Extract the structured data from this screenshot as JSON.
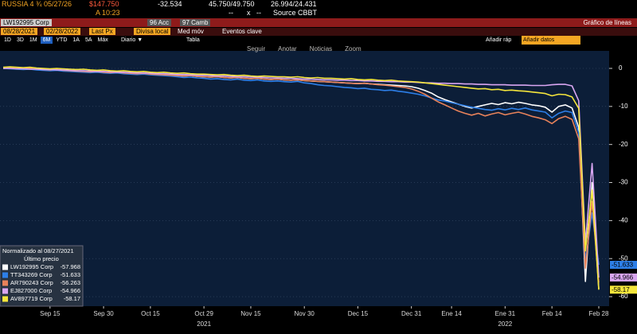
{
  "header": {
    "security": "RUSSIA 4 ¾ 05/27/26",
    "price": "$147.750",
    "change": "-32.534",
    "bid_ask": "45.750/49.750",
    "range": "26.994/24.431",
    "time": "A 10:23",
    "field_1": "--",
    "field_2": "x",
    "field_3": "--",
    "source": "Source CBBT"
  },
  "toolbar": {
    "ticker": "LW192995 Corp",
    "menu_1": "96 Acc",
    "menu_2": "97 Camb",
    "view": "Gráfico de líneas",
    "start_date": "08/28/2021",
    "end_date": "02/28/2022",
    "field": "Last Px",
    "currency": "Divisa local",
    "moving_avg": "Med móv",
    "events": "Eventos clave",
    "periods": [
      "1D",
      "3D",
      "1M",
      "6M",
      "YTD",
      "1A",
      "5A",
      "Máx"
    ],
    "frequency": "Diario ▼",
    "table": "Tabla",
    "quick_add": "Añadir ráp",
    "add_data": "Añadir datos",
    "tools": [
      "Seguir",
      "Anotar",
      "Noticias",
      "Zoom"
    ]
  },
  "chart_data": {
    "type": "line",
    "legend_title": "Normalizado al 08/27/2021",
    "legend_subtitle": "Último precio",
    "legend": "bottom-left",
    "grid": true,
    "categories": [
      null,
      null,
      null,
      null,
      null,
      null,
      null,
      "Sep 15",
      null,
      null,
      null,
      null,
      null,
      null,
      null,
      "Sep 30",
      null,
      null,
      null,
      null,
      null,
      null,
      "Oct 15",
      null,
      null,
      null,
      null,
      null,
      null,
      null,
      "Oct 29",
      null,
      null,
      null,
      null,
      null,
      null,
      "Nov 15",
      null,
      null,
      null,
      null,
      null,
      null,
      null,
      "Nov 30",
      null,
      null,
      null,
      null,
      null,
      null,
      null,
      "Dec 15",
      null,
      null,
      null,
      null,
      null,
      null,
      null,
      "Dec 31",
      null,
      null,
      null,
      null,
      null,
      "Ene 14",
      null,
      null,
      null,
      null,
      null,
      null,
      null,
      "Ene 31",
      null,
      null,
      null,
      null,
      null,
      null,
      "Feb 14",
      null,
      null,
      null,
      null,
      null,
      null,
      "Feb 28"
    ],
    "year_labels": [
      "2021",
      "2022"
    ],
    "ylim": [
      -62.5,
      4.6
    ],
    "yticks": [
      0,
      -10,
      -20,
      -30,
      -40,
      -50,
      -60
    ],
    "series": [
      {
        "name": "LW192995 Corp",
        "color": "#ffffff",
        "end_label": false,
        "values": [
          0,
          0,
          -0.1,
          -0.2,
          -0.1,
          -0.2,
          -0.3,
          -0.4,
          -0.3,
          -0.5,
          -0.6,
          -0.7,
          -0.8,
          -0.7,
          -0.9,
          -1.0,
          -1.1,
          -1.0,
          -1.2,
          -1.3,
          -1.4,
          -1.3,
          -1.5,
          -1.6,
          -1.7,
          -1.8,
          -1.9,
          -2.0,
          -1.9,
          -2.1,
          -2.2,
          -2.3,
          -2.2,
          -2.4,
          -2.5,
          -2.4,
          -2.6,
          -2.7,
          -2.6,
          -2.8,
          -2.9,
          -2.8,
          -3.0,
          -3.1,
          -3.0,
          -3.2,
          -3.3,
          -3.4,
          -3.5,
          -3.6,
          -3.7,
          -3.8,
          -3.9,
          -4.0,
          -3.9,
          -4.1,
          -4.2,
          -4.3,
          -4.4,
          -4.5,
          -4.6,
          -4.8,
          -5.2,
          -5.8,
          -6.5,
          -7.5,
          -8.2,
          -8.8,
          -9.4,
          -10.0,
          -10.4,
          -10.0,
          -9.6,
          -9.2,
          -9.5,
          -9.0,
          -9.3,
          -8.9,
          -9.2,
          -9.6,
          -9.8,
          -10.2,
          -11.5,
          -10.0,
          -9.6,
          -10.4,
          -15.5,
          -56.0,
          -30.0,
          -57.968
        ]
      },
      {
        "name": "TT343269 Corp",
        "color": "#2d7fe8",
        "end_label": true,
        "values": [
          0,
          -0.1,
          -0.2,
          -0.3,
          -0.2,
          -0.4,
          -0.5,
          -0.6,
          -0.5,
          -0.7,
          -0.8,
          -0.9,
          -1.0,
          -1.1,
          -1.0,
          -1.2,
          -1.3,
          -1.2,
          -1.4,
          -1.5,
          -1.6,
          -1.5,
          -1.7,
          -1.8,
          -1.9,
          -2.0,
          -2.2,
          -2.4,
          -2.3,
          -2.5,
          -2.6,
          -2.8,
          -2.7,
          -2.9,
          -3.0,
          -2.8,
          -3.1,
          -3.2,
          -3.0,
          -3.3,
          -3.4,
          -3.3,
          -3.5,
          -3.6,
          -3.4,
          -3.8,
          -4.0,
          -4.3,
          -4.5,
          -4.6,
          -4.8,
          -5.0,
          -5.1,
          -5.3,
          -5.2,
          -5.5,
          -5.6,
          -5.8,
          -5.7,
          -6.0,
          -6.2,
          -6.5,
          -6.8,
          -7.2,
          -7.8,
          -8.3,
          -8.6,
          -9.0,
          -9.4,
          -9.8,
          -10.2,
          -10.5,
          -10.8,
          -11.0,
          -10.6,
          -10.9,
          -10.5,
          -10.8,
          -10.4,
          -10.9,
          -11.2,
          -11.5,
          -13.0,
          -11.8,
          -11.2,
          -11.6,
          -17.0,
          -50.5,
          -38.0,
          -51.633
        ]
      },
      {
        "name": "AR790243 Corp",
        "color": "#e8825a",
        "end_label": false,
        "values": [
          0.2,
          0.1,
          0,
          -0.1,
          0,
          -0.2,
          -0.3,
          -0.4,
          -0.3,
          -0.5,
          -0.6,
          -0.7,
          -0.8,
          -0.9,
          -0.8,
          -1.0,
          -1.1,
          -1.0,
          -1.2,
          -1.3,
          -1.4,
          -1.3,
          -1.5,
          -1.6,
          -1.7,
          -1.8,
          -1.9,
          -2.0,
          -1.9,
          -2.1,
          -2.2,
          -2.3,
          -2.2,
          -2.4,
          -2.5,
          -2.4,
          -2.6,
          -2.7,
          -2.6,
          -2.8,
          -2.9,
          -2.8,
          -3.0,
          -3.1,
          -3.0,
          -3.2,
          -3.3,
          -3.4,
          -3.5,
          -3.6,
          -3.7,
          -3.8,
          -3.9,
          -4.0,
          -3.9,
          -4.1,
          -4.3,
          -4.4,
          -4.6,
          -4.8,
          -5.0,
          -5.4,
          -6.0,
          -6.8,
          -7.8,
          -8.8,
          -9.6,
          -10.4,
          -11.2,
          -11.8,
          -12.3,
          -11.8,
          -12.5,
          -12.0,
          -11.6,
          -12.2,
          -11.8,
          -11.5,
          -12.0,
          -12.6,
          -13.0,
          -13.5,
          -14.5,
          -13.2,
          -12.6,
          -13.4,
          -18.5,
          -52.5,
          -35.0,
          -56.263
        ]
      },
      {
        "name": "EJ827000 Corp",
        "color": "#d9a6f2",
        "end_label": true,
        "values": [
          0,
          0,
          -0.1,
          -0.1,
          -0.2,
          -0.2,
          -0.3,
          -0.3,
          -0.4,
          -0.4,
          -0.5,
          -0.6,
          -0.6,
          -0.7,
          -0.8,
          -0.8,
          -0.9,
          -1.0,
          -1.0,
          -1.1,
          -1.2,
          -1.2,
          -1.3,
          -1.4,
          -1.4,
          -1.5,
          -1.6,
          -1.6,
          -1.7,
          -1.8,
          -1.8,
          -1.9,
          -2.0,
          -2.0,
          -2.1,
          -2.2,
          -2.2,
          -2.3,
          -2.3,
          -2.4,
          -2.5,
          -2.5,
          -2.6,
          -2.6,
          -2.7,
          -2.8,
          -2.8,
          -2.9,
          -3.0,
          -3.0,
          -3.1,
          -3.1,
          -3.2,
          -3.2,
          -3.3,
          -3.3,
          -3.4,
          -3.4,
          -3.5,
          -3.5,
          -3.6,
          -3.6,
          -3.7,
          -3.8,
          -3.8,
          -3.9,
          -3.9,
          -4.0,
          -4.0,
          -4.1,
          -4.1,
          -4.2,
          -4.2,
          -4.3,
          -4.3,
          -4.3,
          -4.4,
          -4.4,
          -4.4,
          -4.5,
          -4.5,
          -4.5,
          -4.3,
          -4.2,
          -4.2,
          -4.6,
          -8.5,
          -46.0,
          -25.0,
          -54.966
        ]
      },
      {
        "name": "AV897719 Corp",
        "color": "#f5e63c",
        "end_label": true,
        "values": [
          0.3,
          0.4,
          0.3,
          0.2,
          0.3,
          0.1,
          0,
          -0.1,
          0,
          -0.1,
          -0.2,
          -0.3,
          -0.2,
          -0.4,
          -0.5,
          -0.4,
          -0.6,
          -0.7,
          -0.6,
          -0.8,
          -0.9,
          -0.8,
          -1.0,
          -1.1,
          -1.0,
          -1.2,
          -1.3,
          -1.2,
          -1.4,
          -1.5,
          -1.5,
          -1.6,
          -1.7,
          -1.6,
          -1.8,
          -1.9,
          -1.8,
          -2.0,
          -2.1,
          -2.0,
          -2.1,
          -2.2,
          -2.2,
          -2.3,
          -2.2,
          -2.4,
          -2.5,
          -2.4,
          -2.6,
          -2.6,
          -2.7,
          -2.8,
          -2.7,
          -2.9,
          -3.0,
          -2.9,
          -3.1,
          -3.2,
          -3.1,
          -3.3,
          -3.4,
          -3.5,
          -3.6,
          -3.8,
          -4.0,
          -4.2,
          -4.4,
          -4.6,
          -4.8,
          -5.0,
          -5.2,
          -5.4,
          -5.3,
          -5.6,
          -5.5,
          -5.8,
          -5.7,
          -5.9,
          -6.0,
          -6.2,
          -6.4,
          -6.6,
          -7.2,
          -6.8,
          -6.9,
          -7.5,
          -10.5,
          -48.0,
          -32.0,
          -58.17
        ]
      }
    ]
  }
}
